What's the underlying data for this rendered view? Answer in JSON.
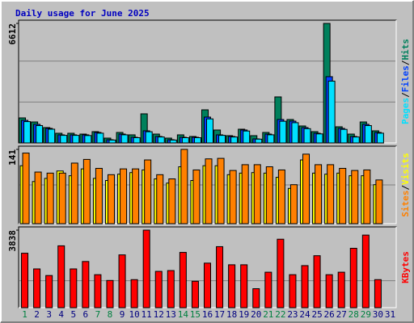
{
  "chart_data": [
    {
      "type": "bar",
      "title": "Daily usage for June 2025",
      "legend_separator": "/",
      "ylim": [
        0,
        6612
      ],
      "yticks": [
        6612
      ],
      "series": [
        {
          "name": "Hits",
          "color": "#00805c",
          "values": [
            1385,
            1160,
            850,
            536,
            536,
            490,
            625,
            268,
            580,
            447,
            1610,
            490,
            268,
            447,
            357,
            1832,
            715,
            402,
            760,
            402,
            580,
            2547,
            1296,
            938,
            625,
            6612,
            894,
            490,
            1160,
            670,
            0
          ]
        },
        {
          "name": "Files",
          "color": "#0040ff",
          "values": [
            1250,
            1030,
            805,
            447,
            447,
            447,
            580,
            179,
            490,
            313,
            670,
            357,
            179,
            313,
            313,
            1430,
            447,
            357,
            715,
            224,
            490,
            1296,
            1207,
            850,
            536,
            3665,
            805,
            357,
            1030,
            580,
            0
          ]
        },
        {
          "name": "Pages",
          "color": "#00e0ff",
          "values": [
            1180,
            960,
            760,
            420,
            420,
            410,
            540,
            160,
            450,
            290,
            620,
            330,
            160,
            290,
            290,
            1330,
            420,
            330,
            660,
            210,
            450,
            1200,
            1120,
            790,
            500,
            3420,
            750,
            330,
            960,
            540,
            0
          ]
        }
      ]
    },
    {
      "type": "bar",
      "ylim": [
        0,
        141
      ],
      "yticks": [
        141
      ],
      "series": [
        {
          "name": "Visits",
          "color": "#ffff00",
          "values": [
            110,
            80,
            86,
            100,
            91,
            104,
            86,
            82,
            94,
            97,
            102,
            85,
            77,
            108,
            82,
            110,
            110,
            93,
            96,
            97,
            96,
            88,
            67,
            121,
            96,
            94,
            96,
            91,
            91,
            74,
            0
          ]
        },
        {
          "name": "Sites",
          "color": "#ff8000",
          "values": [
            134,
            98,
            96,
            96,
            115,
            122,
            105,
            93,
            104,
            104,
            121,
            93,
            85,
            141,
            102,
            123,
            124,
            101,
            112,
            112,
            108,
            102,
            74,
            132,
            112,
            112,
            105,
            101,
            102,
            83,
            0
          ]
        }
      ]
    },
    {
      "type": "bar",
      "ylim": [
        0,
        3838
      ],
      "yticks": [
        3838
      ],
      "categories": [
        1,
        2,
        3,
        4,
        5,
        6,
        7,
        8,
        9,
        10,
        11,
        12,
        13,
        14,
        15,
        16,
        17,
        18,
        19,
        20,
        21,
        22,
        23,
        24,
        25,
        26,
        27,
        28,
        29,
        30,
        31
      ],
      "category_colors": [
        "#008040",
        "#000080",
        "#000080",
        "#000080",
        "#000080",
        "#000080",
        "#008040",
        "#008040",
        "#000080",
        "#000080",
        "#000080",
        "#000080",
        "#000080",
        "#008040",
        "#008040",
        "#000080",
        "#000080",
        "#000080",
        "#000080",
        "#000080",
        "#008040",
        "#008040",
        "#000080",
        "#000080",
        "#000080",
        "#000080",
        "#000080",
        "#008040",
        "#008040",
        "#000080",
        "#000080"
      ],
      "series": [
        {
          "name": "KBytes",
          "color": "#ff0000",
          "values": [
            2695,
            1919,
            1592,
            3062,
            1919,
            2286,
            1633,
            1347,
            2613,
            1388,
            3838,
            1797,
            1837,
            2736,
            1307,
            2205,
            3021,
            2123,
            2123,
            939,
            1756,
            3389,
            1633,
            2082,
            2572,
            1633,
            1756,
            2940,
            3593,
            1388,
            0
          ]
        }
      ]
    }
  ]
}
